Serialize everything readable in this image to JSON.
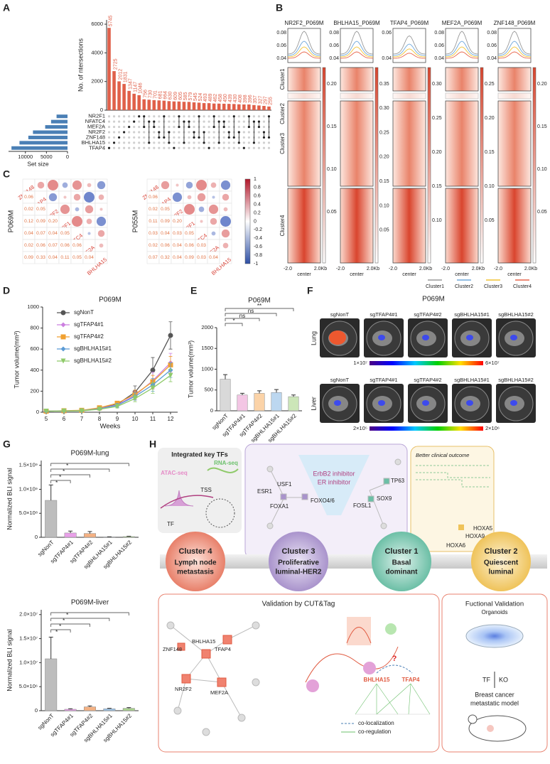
{
  "panel_labels": [
    "A",
    "B",
    "C",
    "D",
    "E",
    "F",
    "G",
    "H"
  ],
  "chart_data": [
    {
      "type": "bar",
      "ylabel": "No. of ntersections",
      "categories": [
        null,
        null,
        null,
        null,
        null,
        null,
        null,
        null,
        null,
        null,
        null,
        null,
        null,
        null,
        null,
        null,
        null,
        null,
        null,
        null,
        null,
        null,
        null,
        null,
        null,
        null,
        null,
        null,
        null,
        null,
        null,
        null,
        null
      ],
      "values": [
        5745,
        2725,
        2012,
        1831,
        1347,
        1147,
        1046,
        756,
        730,
        701,
        681,
        664,
        630,
        609,
        605,
        585,
        579,
        545,
        524,
        493,
        489,
        462,
        458,
        450,
        439,
        430,
        408,
        398,
        396,
        357,
        327,
        297,
        255
      ],
      "color": "#e0604a",
      "show_values": true,
      "ylim": [
        0,
        6300
      ],
      "yticks": [
        0,
        2000,
        4000,
        6000
      ]
    },
    {
      "type": "hbar",
      "xlabel": "Set size",
      "categories": [
        "NR2F1",
        "NFATC4",
        "MEF2A",
        "NR2F2",
        "ZNF148",
        "BHLHA15",
        "TFAP4"
      ],
      "values": [
        2600,
        3900,
        5300,
        8200,
        9300,
        11400,
        13300
      ],
      "color": "#4a7fb5",
      "xlim": [
        0,
        14000
      ],
      "xticks": [
        10000,
        5000,
        0
      ],
      "reversed": true
    },
    {
      "type": "line",
      "title": "P069M",
      "xlabel": "Weeks",
      "ylabel": "Tumor volume(mm³)",
      "x": [
        5,
        6,
        7,
        8,
        9,
        10,
        11,
        12
      ],
      "xlim": [
        4.8,
        12.4
      ],
      "xticks": [
        5,
        6,
        7,
        8,
        9,
        10,
        11,
        12
      ],
      "ylim": [
        0,
        1000
      ],
      "yticks": [
        0,
        200,
        400,
        600,
        800,
        1000
      ],
      "legend": "upper left",
      "series": [
        {
          "name": "sgNonT",
          "color": "#555555",
          "marker": "circle",
          "values": [
            10,
            12,
            15,
            38,
            75,
            190,
            400,
            730
          ],
          "errors": [
            5,
            5,
            8,
            15,
            25,
            60,
            120,
            130
          ]
        },
        {
          "name": "sgTFAP4#1",
          "color": "#cc7fe0",
          "marker": "diamond",
          "values": [
            10,
            12,
            16,
            35,
            70,
            160,
            300,
            470
          ],
          "errors": [
            4,
            5,
            6,
            12,
            20,
            40,
            80,
            90
          ]
        },
        {
          "name": "sgTFAP4#2",
          "color": "#f0a030",
          "marker": "square",
          "values": [
            10,
            14,
            18,
            42,
            85,
            170,
            290,
            450
          ],
          "errors": [
            4,
            5,
            8,
            14,
            20,
            40,
            60,
            80
          ]
        },
        {
          "name": "sgBHLHA15#1",
          "color": "#5b9bd5",
          "marker": "diamond",
          "values": [
            10,
            12,
            14,
            32,
            65,
            150,
            260,
            400
          ],
          "errors": [
            4,
            5,
            6,
            12,
            18,
            35,
            60,
            70
          ]
        },
        {
          "name": "sgBHLHA15#2",
          "color": "#8fca6a",
          "marker": "triangle",
          "values": [
            10,
            11,
            13,
            28,
            55,
            130,
            230,
            350
          ],
          "errors": [
            4,
            4,
            5,
            10,
            15,
            30,
            50,
            60
          ]
        }
      ]
    },
    {
      "type": "bar",
      "title": "P069M",
      "ylabel": "Tumor volume(mm³)",
      "categories": [
        "sgNonT",
        "sgTFAP4#1",
        "sgTFAP4#2",
        "sgBHLHA15#1",
        "sgBHLHA15#2"
      ],
      "values": [
        760,
        380,
        420,
        440,
        340
      ],
      "errors": [
        110,
        40,
        60,
        70,
        40
      ],
      "colors": [
        "#d9d9d9",
        "#f3c6e4",
        "#fbd3a8",
        "#bcd7f0",
        "#cce6b8"
      ],
      "ylim": [
        0,
        2000
      ],
      "yticks": [
        0,
        500,
        1000,
        1500,
        2000
      ],
      "annotations": [
        "*",
        "ns",
        "ns",
        "**"
      ]
    },
    {
      "type": "bar",
      "title": "P069M-lung",
      "ylabel": "Normalized BLI signal",
      "categories": [
        "sgNonT",
        "sgTFAP4#1",
        "sgTFAP4#2",
        "sgBHLHA15#1",
        "sgBHLHA15#2"
      ],
      "values": [
        770000000,
        90000000,
        80000000,
        8000000,
        15000000
      ],
      "errors": [
        320000000,
        40000000,
        40000000,
        4000000,
        8000000
      ],
      "colors": [
        "#bdbdbd",
        "#e8a0e8",
        "#f4b183",
        "#9dc3e6",
        "#a9d18e"
      ],
      "ylim": [
        0,
        1600000000
      ],
      "yticks": [
        0,
        {
          "value": 500000000,
          "label": "5.0×10⁸"
        },
        {
          "value": 1000000000,
          "label": "1.0×10⁹"
        },
        {
          "value": 1500000000,
          "label": "1.5×10⁹"
        }
      ],
      "annotations": [
        "*",
        "*",
        "*",
        "*"
      ]
    },
    {
      "type": "bar",
      "title": "P069M-liver",
      "ylabel": "Normalized BLI signal",
      "categories": [
        "sgNonT",
        "sgTFAP4#1",
        "sgTFAP4#2",
        "sgBHLHA15#1",
        "sgBHLHA15#2"
      ],
      "values": [
        10800000,
        300000,
        800000,
        400000,
        500000
      ],
      "errors": [
        4500000,
        100000,
        200000,
        100000,
        150000
      ],
      "colors": [
        "#bdbdbd",
        "#e8a0e8",
        "#f4b183",
        "#9dc3e6",
        "#a9d18e"
      ],
      "ylim": [
        0,
        21000000
      ],
      "yticks": [
        0,
        {
          "value": 5000000,
          "label": "5.0×10⁶"
        },
        {
          "value": 10000000,
          "label": "1.0×10⁷"
        },
        {
          "value": 15000000,
          "label": "1.5×10⁷"
        },
        {
          "value": 20000000,
          "label": "2.0×10⁷"
        }
      ],
      "annotations": [
        "*",
        "*",
        "*",
        "*"
      ]
    }
  ],
  "heatmaps": {
    "titles": [
      "NR2F2_P069M",
      "BHLHA15_P069M",
      "TFAP4_P069M",
      "MEF2A_P069M",
      "ZNF148_P069M"
    ],
    "profile_ticks": [
      [
        "0.08",
        "0.06",
        "0.04"
      ],
      [
        "0.08",
        "0.06",
        "0.04"
      ],
      [
        "0.06",
        "0.04"
      ],
      [
        "0.08",
        "0.06",
        "0.04"
      ],
      [
        "0.08",
        "0.06",
        "0.04"
      ]
    ],
    "colorbar_ticks": [
      [
        "0.20",
        "0.15",
        "0.10",
        "0.05"
      ],
      [
        "0.35",
        "0.30",
        "0.25",
        "0.20",
        "0.15",
        "0.10",
        "0.05"
      ],
      [
        "0.30",
        "0.25",
        "0.20",
        "0.15",
        "0.10"
      ],
      [
        "0.25",
        "0.20",
        "0.15",
        "0.10",
        "0.05"
      ],
      [
        "0.20",
        "0.15",
        "0.10",
        "0.05"
      ]
    ],
    "clusters": [
      "Cluster1",
      "Cluster2",
      "Cluster3",
      "Cluster4"
    ],
    "x_labels": [
      "-2.0",
      "center",
      "2.0Kb"
    ],
    "legend": [
      "Cluster1",
      "Cluster2",
      "Cluster3",
      "Cluster4"
    ],
    "legend_colors": [
      "#999999",
      "#6fa8dc",
      "#f1c232",
      "#e8654a"
    ]
  },
  "correlation": {
    "labels": [
      "ZNF148",
      "TFAP4",
      "NR2F2",
      "NR2F1",
      "NFATC4",
      "MEF2A",
      "BHLHA15"
    ],
    "colorbar_ticks": [
      "1",
      "0.8",
      "0.6",
      "0.4",
      "0.2",
      "0",
      "-0.2",
      "-0.4",
      "-0.6",
      "-0.8",
      "-1"
    ],
    "matrices": [
      {
        "name": "P069M",
        "lower": [
          [
            "0.06"
          ],
          [
            "0.02",
            "0.05"
          ],
          [
            "0.12",
            "0.09",
            "0.20"
          ],
          [
            "0.04",
            "0.07",
            "0.04",
            "0.05"
          ],
          [
            "0.02",
            "0.06",
            "0.07",
            "0.06",
            "0.06"
          ],
          [
            "0.09",
            "0.33",
            "0.04",
            "0.11",
            "0.05",
            "0.04"
          ]
        ]
      },
      {
        "name": "P055M",
        "lower": [
          [
            "0.06"
          ],
          [
            "0.02",
            "0.05"
          ],
          [
            "0.11",
            "0.09",
            "0.20"
          ],
          [
            "0.03",
            "0.04",
            "0.03",
            "0.05"
          ],
          [
            "0.02",
            "0.06",
            "0.04",
            "0.06",
            "0.03"
          ],
          [
            "0.07",
            "0.32",
            "0.04",
            "0.09",
            "0.03",
            "0.04"
          ]
        ]
      }
    ]
  },
  "imaging": {
    "title": "P069M",
    "rows": [
      "Lung",
      "Liver"
    ],
    "samples": [
      "sgNonT",
      "sgTFAP4#1",
      "sgTFAP4#2",
      "sgBHLHA15#1",
      "sgBHLHA15#2"
    ],
    "scales": [
      [
        "1×10⁷",
        "6×10⁷"
      ],
      [
        "2×10⁵",
        "2×10⁶"
      ]
    ]
  },
  "diagram": {
    "integrated": {
      "title": "Integrated key TFs",
      "atac": "ATAC-seq",
      "rna": "RNA-seq",
      "tss": "TSS",
      "tf": "TF"
    },
    "cluster3_nodes": [
      "USF1",
      "ESR1",
      "FOXA1",
      "FOXO4/6"
    ],
    "drugs": [
      "ErbB2 inhibitor",
      "ER inhibitor"
    ],
    "cluster1_nodes": [
      "TP63",
      "FOSL1",
      "SOX9"
    ],
    "outcome": "Better clinical outcome",
    "cluster2_nodes": [
      "HOXA5",
      "HOXA9",
      "HOXA6"
    ],
    "clusters": [
      {
        "name": "Cluster 4",
        "lines": [
          "Lymph node",
          "metastasis"
        ]
      },
      {
        "name": "Cluster 3",
        "lines": [
          "Proliferative",
          "luminal-HER2"
        ]
      },
      {
        "name": "Cluster 1",
        "lines": [
          "Basal",
          "dominant"
        ]
      },
      {
        "name": "Cluster 2",
        "lines": [
          "Quiescent",
          "luminal"
        ]
      }
    ],
    "cuttag": {
      "title": "Validation by CUT&Tag",
      "nodes": [
        "ZNF148",
        "BHLHA15",
        "TFAP4",
        "NR2F2",
        "MEF2A"
      ],
      "pair": [
        "BHLHA15",
        "TFAP4"
      ],
      "question": "?",
      "legend": [
        "co-localization",
        "co-regulation"
      ]
    },
    "functional": {
      "title": "Fuctional Validation",
      "subtitle": "Organoids",
      "tf": "TF",
      "ko": "KO",
      "model": [
        "Breast cancer",
        "metastatic model"
      ]
    }
  }
}
